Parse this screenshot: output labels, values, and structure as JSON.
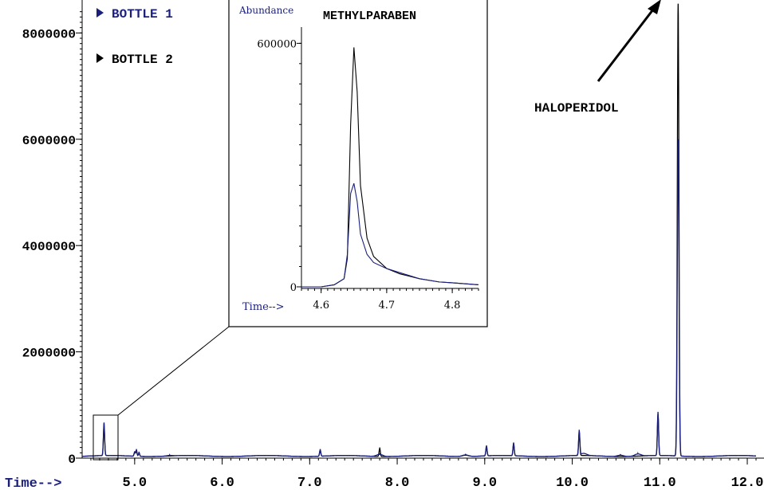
{
  "chart_data": [
    {
      "type": "line",
      "title": "",
      "xlabel": "Time-->",
      "ylabel": "",
      "xlim": [
        4.4,
        12.1
      ],
      "ylim": [
        0,
        8500000
      ],
      "x_ticks": [
        5.0,
        6.0,
        7.0,
        8.0,
        9.0,
        10.0,
        11.0,
        12.0
      ],
      "x_tick_labels": [
        "5.0",
        "6.0",
        "7.0",
        "8.0",
        "9.0",
        "10.0",
        "11.0",
        "12.0"
      ],
      "y_ticks": [
        0,
        2000000,
        4000000,
        6000000,
        8000000
      ],
      "y_tick_labels": [
        "0",
        "2000000",
        "4000000",
        "6000000",
        "8000000"
      ],
      "grid": false,
      "legend_placement": "top-left",
      "baseline": 50000,
      "series": [
        {
          "name": "BOTTLE 1",
          "color": "#1a1f7a",
          "peaks": [
            [
              4.65,
              620000
            ],
            [
              5.0,
              80000
            ],
            [
              5.02,
              120000
            ],
            [
              5.05,
              70000
            ],
            [
              5.4,
              10000
            ],
            [
              7.12,
              120000
            ],
            [
              7.8,
              40000
            ],
            [
              8.78,
              30000
            ],
            [
              9.02,
              190000
            ],
            [
              9.33,
              240000
            ],
            [
              10.08,
              470000
            ],
            [
              10.13,
              40000
            ],
            [
              10.55,
              25000
            ],
            [
              10.75,
              40000
            ],
            [
              10.98,
              820000
            ],
            [
              11.21,
              5950000
            ]
          ]
        },
        {
          "name": "BOTTLE 2",
          "color": "#000000",
          "peaks": [
            [
              4.65,
              560000
            ],
            [
              5.0,
              70000
            ],
            [
              5.02,
              100000
            ],
            [
              5.05,
              60000
            ],
            [
              7.12,
              110000
            ],
            [
              7.8,
              150000
            ],
            [
              8.78,
              25000
            ],
            [
              9.02,
              170000
            ],
            [
              9.33,
              220000
            ],
            [
              10.08,
              440000
            ],
            [
              10.98,
              780000
            ],
            [
              11.21,
              8500000
            ]
          ]
        }
      ],
      "legend": [
        {
          "label": "BOTTLE 1",
          "color": "#1a1f7a"
        },
        {
          "label": "BOTTLE 2",
          "color": "#000000"
        }
      ],
      "annotations": [
        {
          "text": "HALOPERIDOL",
          "points_to_x": 11.21
        }
      ]
    },
    {
      "type": "line",
      "title": "METHYLPARABEN",
      "xlabel": "Time-->",
      "ylabel": "Abundance",
      "xlim": [
        4.57,
        4.84
      ],
      "ylim": [
        0,
        640000
      ],
      "x_ticks": [
        4.6,
        4.7,
        4.8
      ],
      "x_tick_labels": [
        "4.6",
        "4.7",
        "4.8"
      ],
      "y_ticks": [
        0,
        600000
      ],
      "y_tick_labels": [
        "0",
        "600000"
      ],
      "grid": false,
      "series": [
        {
          "name": "BOTTLE 1",
          "color": "#1a1f7a",
          "x": [
            4.57,
            4.6,
            4.62,
            4.635,
            4.64,
            4.645,
            4.65,
            4.655,
            4.66,
            4.67,
            4.68,
            4.7,
            4.72,
            4.75,
            4.78,
            4.8,
            4.84
          ],
          "y": [
            0,
            0,
            5000,
            20000,
            80000,
            230000,
            255000,
            210000,
            130000,
            80000,
            60000,
            45000,
            35000,
            20000,
            12000,
            10000,
            5000
          ]
        },
        {
          "name": "BOTTLE 2",
          "color": "#000000",
          "x": [
            4.57,
            4.6,
            4.62,
            4.635,
            4.64,
            4.645,
            4.65,
            4.655,
            4.66,
            4.67,
            4.68,
            4.7,
            4.72,
            4.75,
            4.78,
            4.8,
            4.84
          ],
          "y": [
            0,
            0,
            5000,
            20000,
            70000,
            400000,
            590000,
            480000,
            250000,
            120000,
            75000,
            45000,
            32000,
            20000,
            12000,
            10000,
            5000
          ]
        }
      ]
    }
  ]
}
